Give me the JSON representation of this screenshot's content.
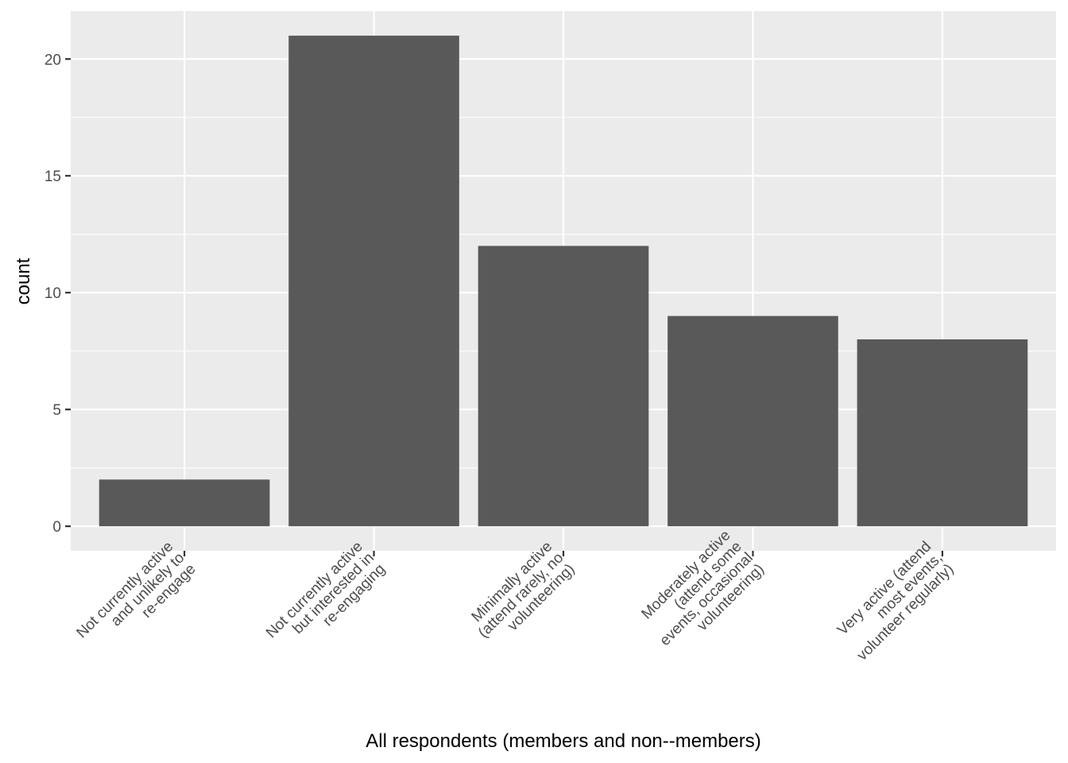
{
  "chart_data": {
    "type": "bar",
    "title": "",
    "xlabel": "All respondents (members and non--members)",
    "ylabel": "count",
    "categories": [
      [
        "Not currently active",
        "and unlikely to",
        "re-engage"
      ],
      [
        "Not currently active",
        "but interested in",
        "re-engaging"
      ],
      [
        "Minimally active",
        "(attend rarely, no",
        "volunteering)"
      ],
      [
        "Moderately active",
        "(attend some",
        "events, occasional",
        "volunteering)"
      ],
      [
        "Very active (attend",
        "most events,",
        "volunteer regularly)"
      ]
    ],
    "values": [
      2,
      21,
      12,
      9,
      8
    ],
    "ylim": [
      -1.05,
      22.05
    ],
    "yticks": [
      0,
      5,
      10,
      15,
      20
    ],
    "grid": true,
    "colors": {
      "panel": "#EBEBEB",
      "bar": "#595959",
      "grid": "#FFFFFF",
      "tick_text": "#4D4D4D",
      "axis_title": "#000000"
    }
  }
}
